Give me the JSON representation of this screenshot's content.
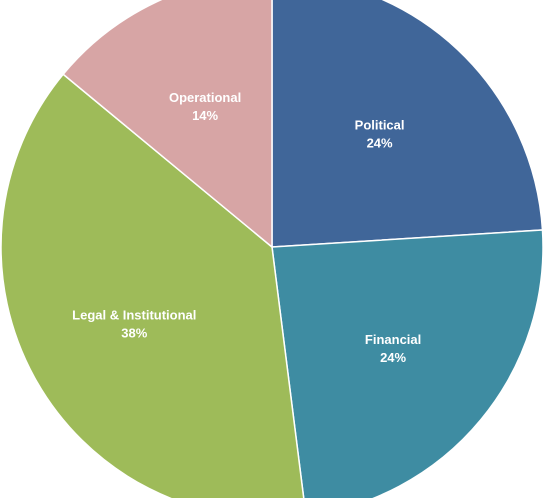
{
  "chart_data": {
    "type": "pie",
    "title": "",
    "start": "12 o'clock",
    "direction": "clockwise",
    "legend": "none",
    "slices": [
      {
        "label": "Political",
        "value": 24,
        "value_label": "24%",
        "color": "#406699"
      },
      {
        "label": "Financial",
        "value": 24,
        "value_label": "24%",
        "color": "#3e8ca2"
      },
      {
        "label": "Legal & Institutional",
        "value": 38,
        "value_label": "38%",
        "color": "#9ebb59"
      },
      {
        "label": "Operational",
        "value": 14,
        "value_label": "14%",
        "color": "#d7a5a5"
      }
    ]
  }
}
